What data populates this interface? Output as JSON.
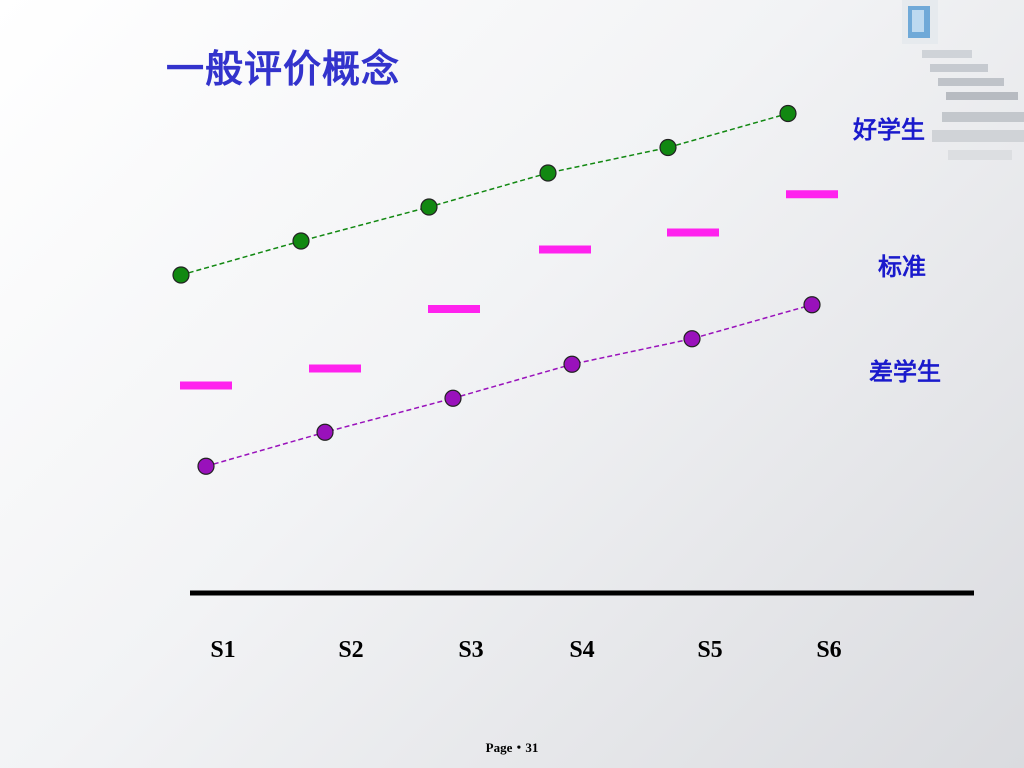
{
  "slide": {
    "title": "一般评价概念",
    "footer": "Page・31"
  },
  "colors": {
    "good": "#118811",
    "standard": "#ff22ee",
    "poor": "#9911bb",
    "title": "#3333cc",
    "label": "#1a1acc"
  },
  "chart_data": {
    "type": "scatter",
    "categories": [
      "S1",
      "S2",
      "S3",
      "S4",
      "S5",
      "S6"
    ],
    "ylim": [
      0,
      100
    ],
    "series": [
      {
        "name": "好学生",
        "values": [
          60,
          68,
          76,
          84,
          90,
          98
        ]
      },
      {
        "name": "标准",
        "values": [
          34,
          38,
          52,
          66,
          70,
          79
        ]
      },
      {
        "name": "差学生",
        "values": [
          15,
          23,
          31,
          39,
          45,
          53
        ]
      }
    ]
  }
}
